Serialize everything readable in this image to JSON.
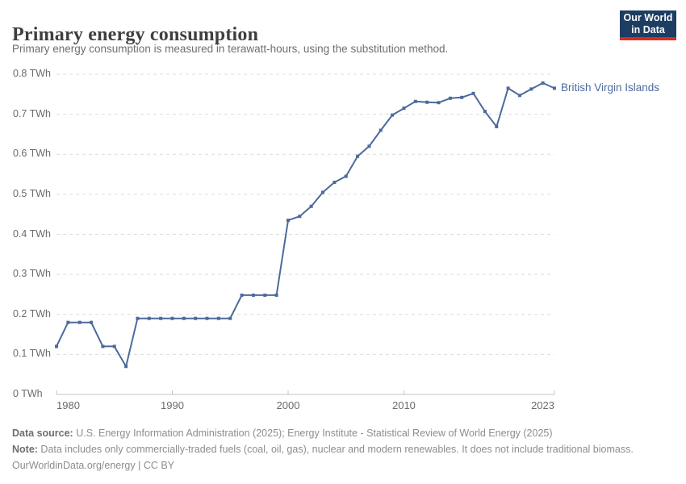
{
  "header": {
    "title": "Primary energy consumption",
    "subtitle": "Primary energy consumption is measured in terawatt-hours, using the substitution method."
  },
  "logo": {
    "line1": "Our World",
    "line2": "in Data",
    "bg_color": "#1d3d63",
    "accent_color": "#dc2a1e"
  },
  "chart_data": {
    "type": "line",
    "title": "Primary energy consumption",
    "unit": "TWh",
    "x": [
      1980,
      1981,
      1982,
      1983,
      1984,
      1985,
      1986,
      1987,
      1988,
      1989,
      1990,
      1991,
      1992,
      1993,
      1994,
      1995,
      1996,
      1997,
      1998,
      1999,
      2000,
      2001,
      2002,
      2003,
      2004,
      2005,
      2006,
      2007,
      2008,
      2009,
      2010,
      2011,
      2012,
      2013,
      2014,
      2015,
      2016,
      2017,
      2018,
      2019,
      2020,
      2021,
      2022,
      2023
    ],
    "series": [
      {
        "name": "British Virgin Islands",
        "color": "#4C6A9C",
        "values": [
          0.12,
          0.18,
          0.18,
          0.18,
          0.12,
          0.12,
          0.07,
          0.19,
          0.19,
          0.19,
          0.19,
          0.19,
          0.19,
          0.19,
          0.19,
          0.19,
          0.248,
          0.248,
          0.248,
          0.248,
          0.435,
          0.445,
          0.47,
          0.505,
          0.53,
          0.545,
          0.595,
          0.62,
          0.66,
          0.698,
          0.715,
          0.732,
          0.73,
          0.729,
          0.74,
          0.742,
          0.752,
          0.707,
          0.669,
          0.765,
          0.747,
          0.763,
          0.778,
          0.765
        ]
      }
    ],
    "xlabel": "",
    "ylabel": "TWh",
    "ylim": [
      0,
      0.8
    ],
    "xlim": [
      1980,
      2023
    ],
    "yticks": [
      0,
      0.1,
      0.2,
      0.3,
      0.4,
      0.5,
      0.6,
      0.7,
      0.8
    ],
    "ytick_labels": [
      "0 TWh",
      "0.1 TWh",
      "0.2 TWh",
      "0.3 TWh",
      "0.4 TWh",
      "0.5 TWh",
      "0.6 TWh",
      "0.7 TWh",
      "0.8 TWh"
    ],
    "xticks": [
      1980,
      1990,
      2000,
      2010,
      2023
    ],
    "grid": "horizontal-dashed",
    "legend_position": "end-of-line",
    "colors": {
      "grid": "#dcdcdc",
      "axis": "#c4c4c4",
      "tick_text": "#6b6b6b"
    }
  },
  "footer": {
    "source_label": "Data source:",
    "source_text": " U.S. Energy Information Administration (2025); Energy Institute - Statistical Review of World Energy (2025)",
    "note_label": "Note:",
    "note_text": " Data includes only commercially-traded fuels (coal, oil, gas), nuclear and modern renewables. It does not include traditional biomass.",
    "url": "OurWorldinData.org/energy",
    "separator": " | ",
    "license": "CC BY"
  }
}
